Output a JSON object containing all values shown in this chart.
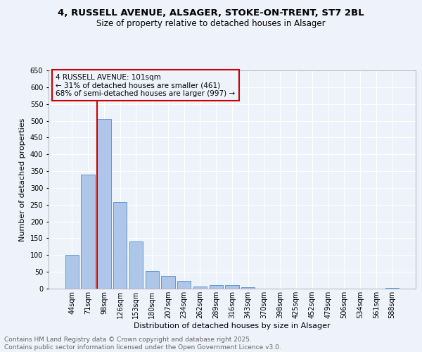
{
  "title_line1": "4, RUSSELL AVENUE, ALSAGER, STOKE-ON-TRENT, ST7 2BL",
  "title_line2": "Size of property relative to detached houses in Alsager",
  "xlabel": "Distribution of detached houses by size in Alsager",
  "ylabel": "Number of detached properties",
  "bar_color": "#aec6e8",
  "bar_edge_color": "#5b9bd5",
  "vline_color": "#cc0000",
  "vline_x_index": 2,
  "categories": [
    "44sqm",
    "71sqm",
    "98sqm",
    "126sqm",
    "153sqm",
    "180sqm",
    "207sqm",
    "234sqm",
    "262sqm",
    "289sqm",
    "316sqm",
    "343sqm",
    "370sqm",
    "398sqm",
    "425sqm",
    "452sqm",
    "479sqm",
    "506sqm",
    "534sqm",
    "561sqm",
    "588sqm"
  ],
  "values": [
    100,
    340,
    505,
    257,
    140,
    53,
    38,
    24,
    7,
    10,
    11,
    4,
    0,
    0,
    0,
    0,
    0,
    0,
    0,
    0,
    3
  ],
  "ylim": [
    0,
    650
  ],
  "yticks": [
    0,
    50,
    100,
    150,
    200,
    250,
    300,
    350,
    400,
    450,
    500,
    550,
    600,
    650
  ],
  "annotation_text": "4 RUSSELL AVENUE: 101sqm\n← 31% of detached houses are smaller (461)\n68% of semi-detached houses are larger (997) →",
  "footer_text": "Contains HM Land Registry data © Crown copyright and database right 2025.\nContains public sector information licensed under the Open Government Licence v3.0.",
  "background_color": "#eef2fb",
  "grid_color": "#ffffff",
  "title_fontsize": 9.5,
  "subtitle_fontsize": 8.5,
  "axis_label_fontsize": 8,
  "tick_fontsize": 7,
  "annotation_fontsize": 7.5,
  "footer_fontsize": 6.5
}
